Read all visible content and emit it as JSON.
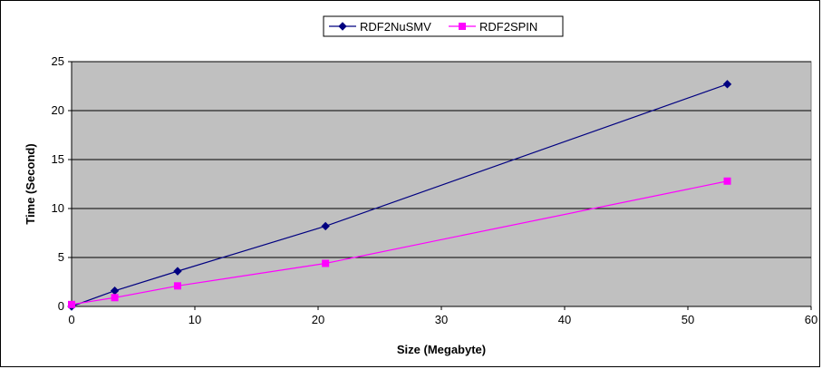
{
  "chart_data": {
    "type": "line",
    "xlabel": "Size (Megabyte)",
    "ylabel": "Time (Second)",
    "xlim": [
      0,
      60
    ],
    "ylim": [
      0,
      25
    ],
    "xticks": [
      "0",
      "10",
      "20",
      "30",
      "40",
      "50",
      "60"
    ],
    "yticks": [
      "0",
      "5",
      "10",
      "15",
      "20",
      "25"
    ],
    "grid": "horizontal",
    "legend": "top-center",
    "plot_background": "#c0c0c0",
    "series": [
      {
        "name": "RDF2NuSMV",
        "color": "#000080",
        "marker": "diamond",
        "x": [
          0,
          3.5,
          8.6,
          20.6,
          53.2
        ],
        "y": [
          0,
          1.6,
          3.6,
          8.2,
          22.7
        ]
      },
      {
        "name": "RDF2SPIN",
        "color": "#ff00ff",
        "marker": "square",
        "x": [
          0,
          3.5,
          8.6,
          20.6,
          53.2
        ],
        "y": [
          0.2,
          0.9,
          2.1,
          4.4,
          12.8
        ]
      }
    ]
  }
}
